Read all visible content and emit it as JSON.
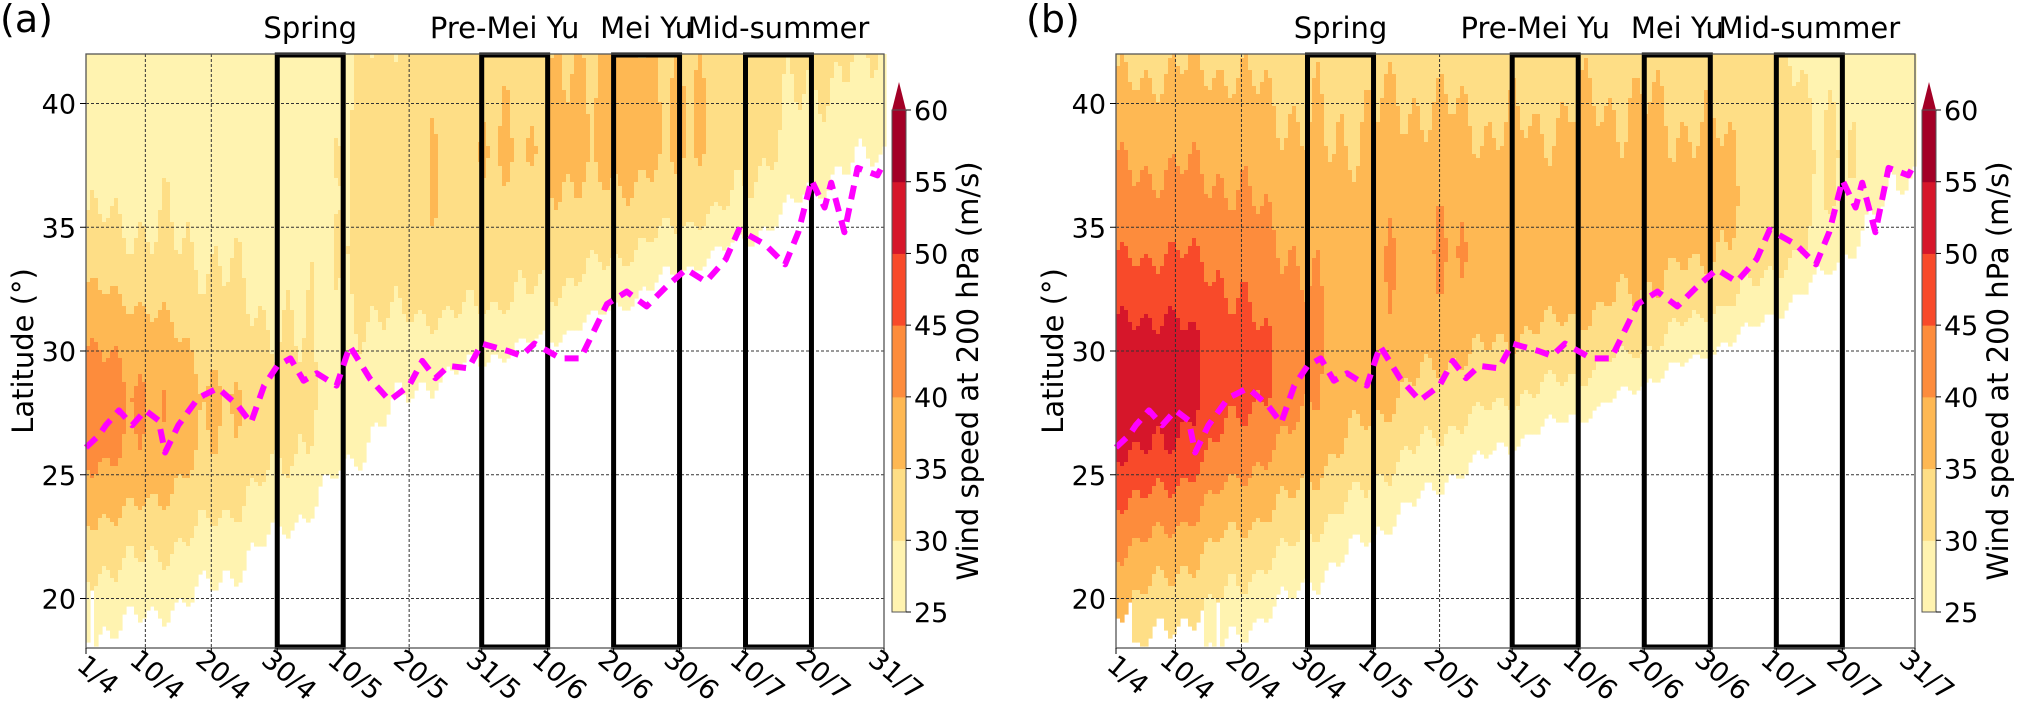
{
  "chart_data": {
    "type": "heatmap",
    "description": "Filled-contour time-latitude sections of 200 hPa wind speed with jet-axis latitude (dashed magenta)",
    "x_tick_labels": [
      "1/4",
      "10/4",
      "20/4",
      "30/4",
      "10/5",
      "20/5",
      "31/5",
      "10/6",
      "20/6",
      "30/6",
      "10/7",
      "20/7",
      "31/7"
    ],
    "x_tick_days": [
      0,
      9,
      19,
      29,
      39,
      49,
      60,
      70,
      80,
      90,
      100,
      110,
      121
    ],
    "xlim_days": [
      0,
      121
    ],
    "ylabel": "Latitude (°)",
    "y_ticks": [
      20,
      25,
      30,
      35,
      40
    ],
    "ylim": [
      18,
      42
    ],
    "grid": true,
    "periods": [
      {
        "label": "Spring",
        "start_day": 29,
        "end_day": 39
      },
      {
        "label": "Pre-Mei Yu",
        "start_day": 60,
        "end_day": 70
      },
      {
        "label": "Mei Yu",
        "start_day": 80,
        "end_day": 90
      },
      {
        "label": "Mid-summer",
        "start_day": 100,
        "end_day": 110
      }
    ],
    "colorbar": {
      "label": "Wind speed at 200 hPa (m/s)",
      "levels": [
        25,
        30,
        35,
        40,
        45,
        50,
        55,
        60
      ],
      "tick_labels": [
        "25",
        "30",
        "35",
        "40",
        "45",
        "50",
        "55",
        "60"
      ],
      "colors": [
        "#fff3b0",
        "#fede86",
        "#feb853",
        "#fd8c3c",
        "#f84a2a",
        "#d6162a",
        "#a30026"
      ],
      "extend": "max"
    },
    "jet_axis": {
      "name": "Jet axis latitude",
      "color": "#ff00ff",
      "style": "dashed",
      "days": [
        0,
        2,
        3,
        5,
        7,
        9,
        11,
        12,
        14,
        17,
        20,
        23,
        25,
        27,
        29,
        31,
        33,
        35,
        38,
        40,
        43,
        46,
        49,
        51,
        53,
        55,
        58,
        60,
        64,
        66,
        68,
        72,
        75,
        79,
        82,
        85,
        88,
        91,
        94,
        97,
        99,
        103,
        106,
        108,
        110,
        112,
        113,
        115,
        117,
        120,
        121
      ],
      "lat": [
        26.1,
        26.6,
        27.0,
        27.6,
        27.0,
        27.6,
        27.2,
        25.9,
        27.0,
        28.1,
        28.5,
        27.8,
        27.1,
        28.6,
        29.4,
        29.7,
        28.8,
        29.1,
        28.6,
        30.2,
        28.9,
        28.0,
        28.6,
        29.6,
        28.9,
        29.4,
        29.3,
        30.3,
        30.0,
        29.8,
        30.3,
        29.7,
        29.7,
        31.9,
        32.4,
        31.8,
        32.6,
        33.3,
        32.8,
        33.7,
        34.9,
        34.3,
        33.5,
        34.8,
        36.9,
        35.8,
        36.8,
        34.8,
        37.4,
        37.1,
        37.6
      ]
    },
    "field_grid": {
      "days": [
        0,
        8,
        16,
        24,
        32,
        40,
        48,
        56,
        64,
        72,
        80,
        88,
        96,
        104,
        112,
        121
      ],
      "lats": [
        18,
        20,
        22,
        24,
        26,
        28,
        30,
        32,
        34,
        36,
        38,
        40,
        42
      ]
    },
    "panels": [
      {
        "label": "(a)",
        "values": [
          [
            24,
            22,
            20,
            18,
            16,
            14,
            12,
            10,
            10,
            10,
            10,
            10,
            10,
            10,
            10,
            10
          ],
          [
            28,
            27,
            25,
            22,
            19,
            16,
            13,
            11,
            10,
            10,
            10,
            10,
            10,
            10,
            10,
            10
          ],
          [
            32,
            31,
            29,
            26,
            22,
            18,
            15,
            12,
            10,
            10,
            10,
            10,
            10,
            10,
            10,
            10
          ],
          [
            37,
            36,
            33,
            30,
            27,
            22,
            18,
            14,
            12,
            11,
            10,
            10,
            10,
            10,
            10,
            10
          ],
          [
            41,
            40,
            36,
            33,
            30,
            26,
            21,
            17,
            14,
            12,
            11,
            10,
            10,
            10,
            10,
            10
          ],
          [
            42,
            41,
            37,
            34,
            31,
            28,
            25,
            22,
            19,
            16,
            13,
            12,
            11,
            10,
            10,
            10
          ],
          [
            40,
            39,
            35,
            32,
            30,
            29,
            28,
            27,
            25,
            23,
            19,
            16,
            14,
            12,
            11,
            10
          ],
          [
            36,
            35,
            32,
            30,
            29,
            30,
            31,
            31,
            30,
            29,
            26,
            22,
            19,
            16,
            13,
            11
          ],
          [
            32,
            31,
            30,
            29,
            28,
            31,
            33,
            33,
            32,
            32,
            31,
            28,
            25,
            22,
            18,
            15
          ],
          [
            29,
            29,
            29,
            27,
            26,
            31,
            34,
            34,
            33,
            34,
            34,
            33,
            31,
            27,
            23,
            20
          ],
          [
            28,
            28,
            28,
            26,
            27,
            31,
            34,
            34,
            35,
            36,
            37,
            36,
            33,
            30,
            27,
            25
          ],
          [
            27,
            27,
            27,
            27,
            28,
            30,
            33,
            33,
            34,
            35,
            37,
            36,
            33,
            31,
            29,
            28
          ],
          [
            27,
            27,
            27,
            28,
            28,
            29,
            32,
            32,
            33,
            34,
            36,
            35,
            33,
            32,
            31,
            30
          ]
        ]
      },
      {
        "label": "(b)",
        "values": [
          [
            31,
            28,
            25,
            20,
            17,
            14,
            12,
            10,
            10,
            10,
            10,
            10,
            10,
            10,
            10,
            10
          ],
          [
            36,
            33,
            30,
            26,
            22,
            18,
            14,
            11,
            10,
            10,
            10,
            10,
            10,
            10,
            10,
            10
          ],
          [
            40,
            38,
            34,
            31,
            27,
            23,
            18,
            14,
            11,
            10,
            10,
            10,
            10,
            10,
            10,
            10
          ],
          [
            45,
            44,
            39,
            36,
            32,
            28,
            24,
            19,
            15,
            12,
            10,
            10,
            10,
            10,
            10,
            10
          ],
          [
            50,
            50,
            44,
            40,
            36,
            32,
            29,
            26,
            22,
            18,
            14,
            12,
            11,
            10,
            10,
            10
          ],
          [
            53,
            53,
            47,
            44,
            38,
            36,
            33,
            31,
            29,
            27,
            22,
            18,
            15,
            12,
            10,
            10
          ],
          [
            52,
            53,
            48,
            45,
            39,
            38,
            36,
            35,
            33,
            32,
            30,
            26,
            22,
            17,
            13,
            11
          ],
          [
            48,
            49,
            46,
            43,
            39,
            39,
            39,
            38,
            37,
            36,
            34,
            32,
            29,
            24,
            18,
            14
          ],
          [
            44,
            45,
            44,
            41,
            38,
            39,
            40,
            39,
            38,
            38,
            37,
            36,
            33,
            30,
            24,
            18
          ],
          [
            41,
            42,
            41,
            39,
            37,
            38,
            39,
            38,
            38,
            38,
            38,
            37,
            35,
            32,
            28,
            22
          ],
          [
            39,
            39,
            39,
            37,
            35,
            36,
            37,
            36,
            36,
            37,
            36,
            36,
            35,
            32,
            29,
            26
          ],
          [
            36,
            37,
            37,
            35,
            34,
            35,
            35,
            34,
            34,
            35,
            35,
            34,
            33,
            31,
            28,
            27
          ],
          [
            33,
            34,
            34,
            33,
            33,
            33,
            33,
            32,
            33,
            33,
            33,
            33,
            32,
            29,
            27,
            26
          ]
        ]
      }
    ]
  }
}
